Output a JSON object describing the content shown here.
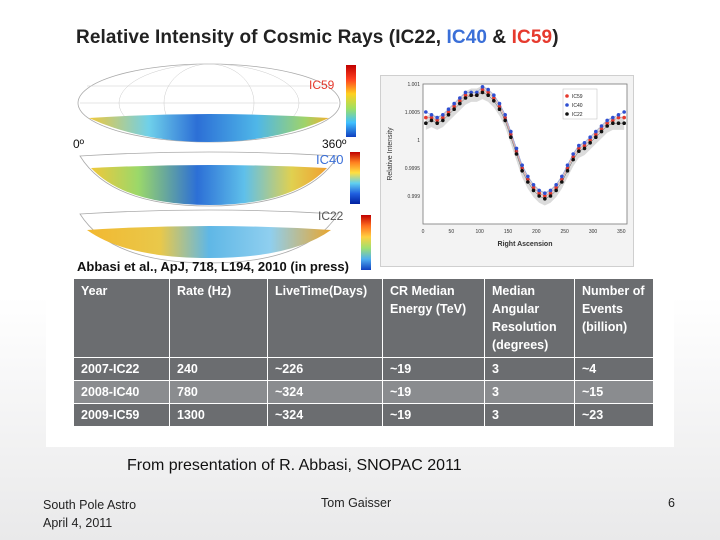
{
  "slide": {
    "title": {
      "prefix": "Relative Intensity of Cosmic Rays (IC22, ",
      "ic40": "IC40",
      "amp": " & ",
      "ic59": "IC59",
      "suffix": ")"
    },
    "maps": [
      {
        "label": "IC59",
        "color": "#e63a2e"
      },
      {
        "label": "IC40",
        "color": "#3a6fd8"
      },
      {
        "label": "IC22",
        "color": "#555555"
      }
    ],
    "axis_left": "0º",
    "axis_right": "360º",
    "citation": "Abbasi et al., ApJ, 718, L194, 2010 (in press)",
    "caption": "From presentation of R. Abbasi, SNOPAC 2011",
    "footer": {
      "left_line1": "South Pole Astro",
      "left_line2": "April 4, 2011",
      "center": "Tom Gaisser",
      "page": "6"
    }
  },
  "table": {
    "headers": [
      "Year",
      "Rate (Hz)",
      "LiveTime(Days)",
      "CR Median Energy (TeV)",
      "Median Angular Resolution (degrees)",
      "Number of Events (billion)"
    ],
    "rows": [
      [
        "2007-IC22",
        "240",
        "~226",
        "~19",
        "3",
        "~4"
      ],
      [
        "2008-IC40",
        "780",
        "~324",
        "~19",
        "3",
        "~15"
      ],
      [
        "2009-IC59",
        "1300",
        "~324",
        "~19",
        "3",
        "~23"
      ]
    ]
  },
  "chart_data": {
    "type": "scatter",
    "xlabel": "Right Ascension",
    "ylabel": "Relative Intensity",
    "xlim": [
      0,
      360
    ],
    "ylim": [
      0.9985,
      1.001
    ],
    "x_ticks": [
      "0",
      "50",
      "100",
      "150",
      "200",
      "250",
      "300",
      "350"
    ],
    "y_ticks": [
      {
        "v": 1.001,
        "label": "1.001"
      },
      {
        "v": 1.0005,
        "label": "1.0005"
      },
      {
        "v": 1.0,
        "label": "1"
      },
      {
        "v": 0.9995,
        "label": "0.9995"
      },
      {
        "v": 0.999,
        "label": "0.999"
      }
    ],
    "legend_position": "top-right",
    "x": [
      5,
      15,
      25,
      35,
      45,
      55,
      65,
      75,
      85,
      95,
      105,
      115,
      125,
      135,
      145,
      155,
      165,
      175,
      185,
      195,
      205,
      215,
      225,
      235,
      245,
      255,
      265,
      275,
      285,
      295,
      305,
      315,
      325,
      335,
      345,
      355
    ],
    "series": [
      {
        "name": "IC59",
        "color": "#e63a2e",
        "values": [
          1.0004,
          1.0004,
          1.00035,
          1.0004,
          1.0005,
          1.0006,
          1.0007,
          1.0008,
          1.0008,
          1.0008,
          1.0009,
          1.00085,
          1.00075,
          1.0006,
          1.0004,
          1.0001,
          0.9998,
          0.9995,
          0.9993,
          0.99915,
          0.99905,
          0.999,
          0.99905,
          0.99915,
          0.9993,
          0.9995,
          0.9997,
          0.99985,
          0.9999,
          1.0,
          1.0001,
          1.0002,
          1.0003,
          1.00035,
          1.0004,
          1.0004
        ]
      },
      {
        "name": "IC40",
        "color": "#2f4fd1",
        "values": [
          1.0005,
          1.00045,
          1.0004,
          1.00045,
          1.00055,
          1.00065,
          1.00075,
          1.00085,
          1.00085,
          1.00085,
          1.00095,
          1.0009,
          1.0008,
          1.00065,
          1.00045,
          1.00015,
          0.99985,
          0.99955,
          0.99935,
          0.9992,
          0.9991,
          0.99905,
          0.9991,
          0.9992,
          0.99935,
          0.99955,
          0.99975,
          0.9999,
          0.99995,
          1.00005,
          1.00015,
          1.00025,
          1.00035,
          1.0004,
          1.00045,
          1.0005
        ]
      },
      {
        "name": "IC22",
        "color": "#111111",
        "values": [
          1.0003,
          1.00035,
          1.0003,
          1.00035,
          1.00045,
          1.00055,
          1.00065,
          1.00075,
          1.0008,
          1.0008,
          1.00085,
          1.0008,
          1.0007,
          1.00055,
          1.00035,
          1.00005,
          0.99975,
          0.99945,
          0.99925,
          0.9991,
          0.999,
          0.99895,
          0.999,
          0.9991,
          0.99925,
          0.99945,
          0.99965,
          0.9998,
          0.99985,
          0.99995,
          1.00005,
          1.00015,
          1.00025,
          1.0003,
          1.0003,
          1.0003
        ]
      }
    ]
  }
}
